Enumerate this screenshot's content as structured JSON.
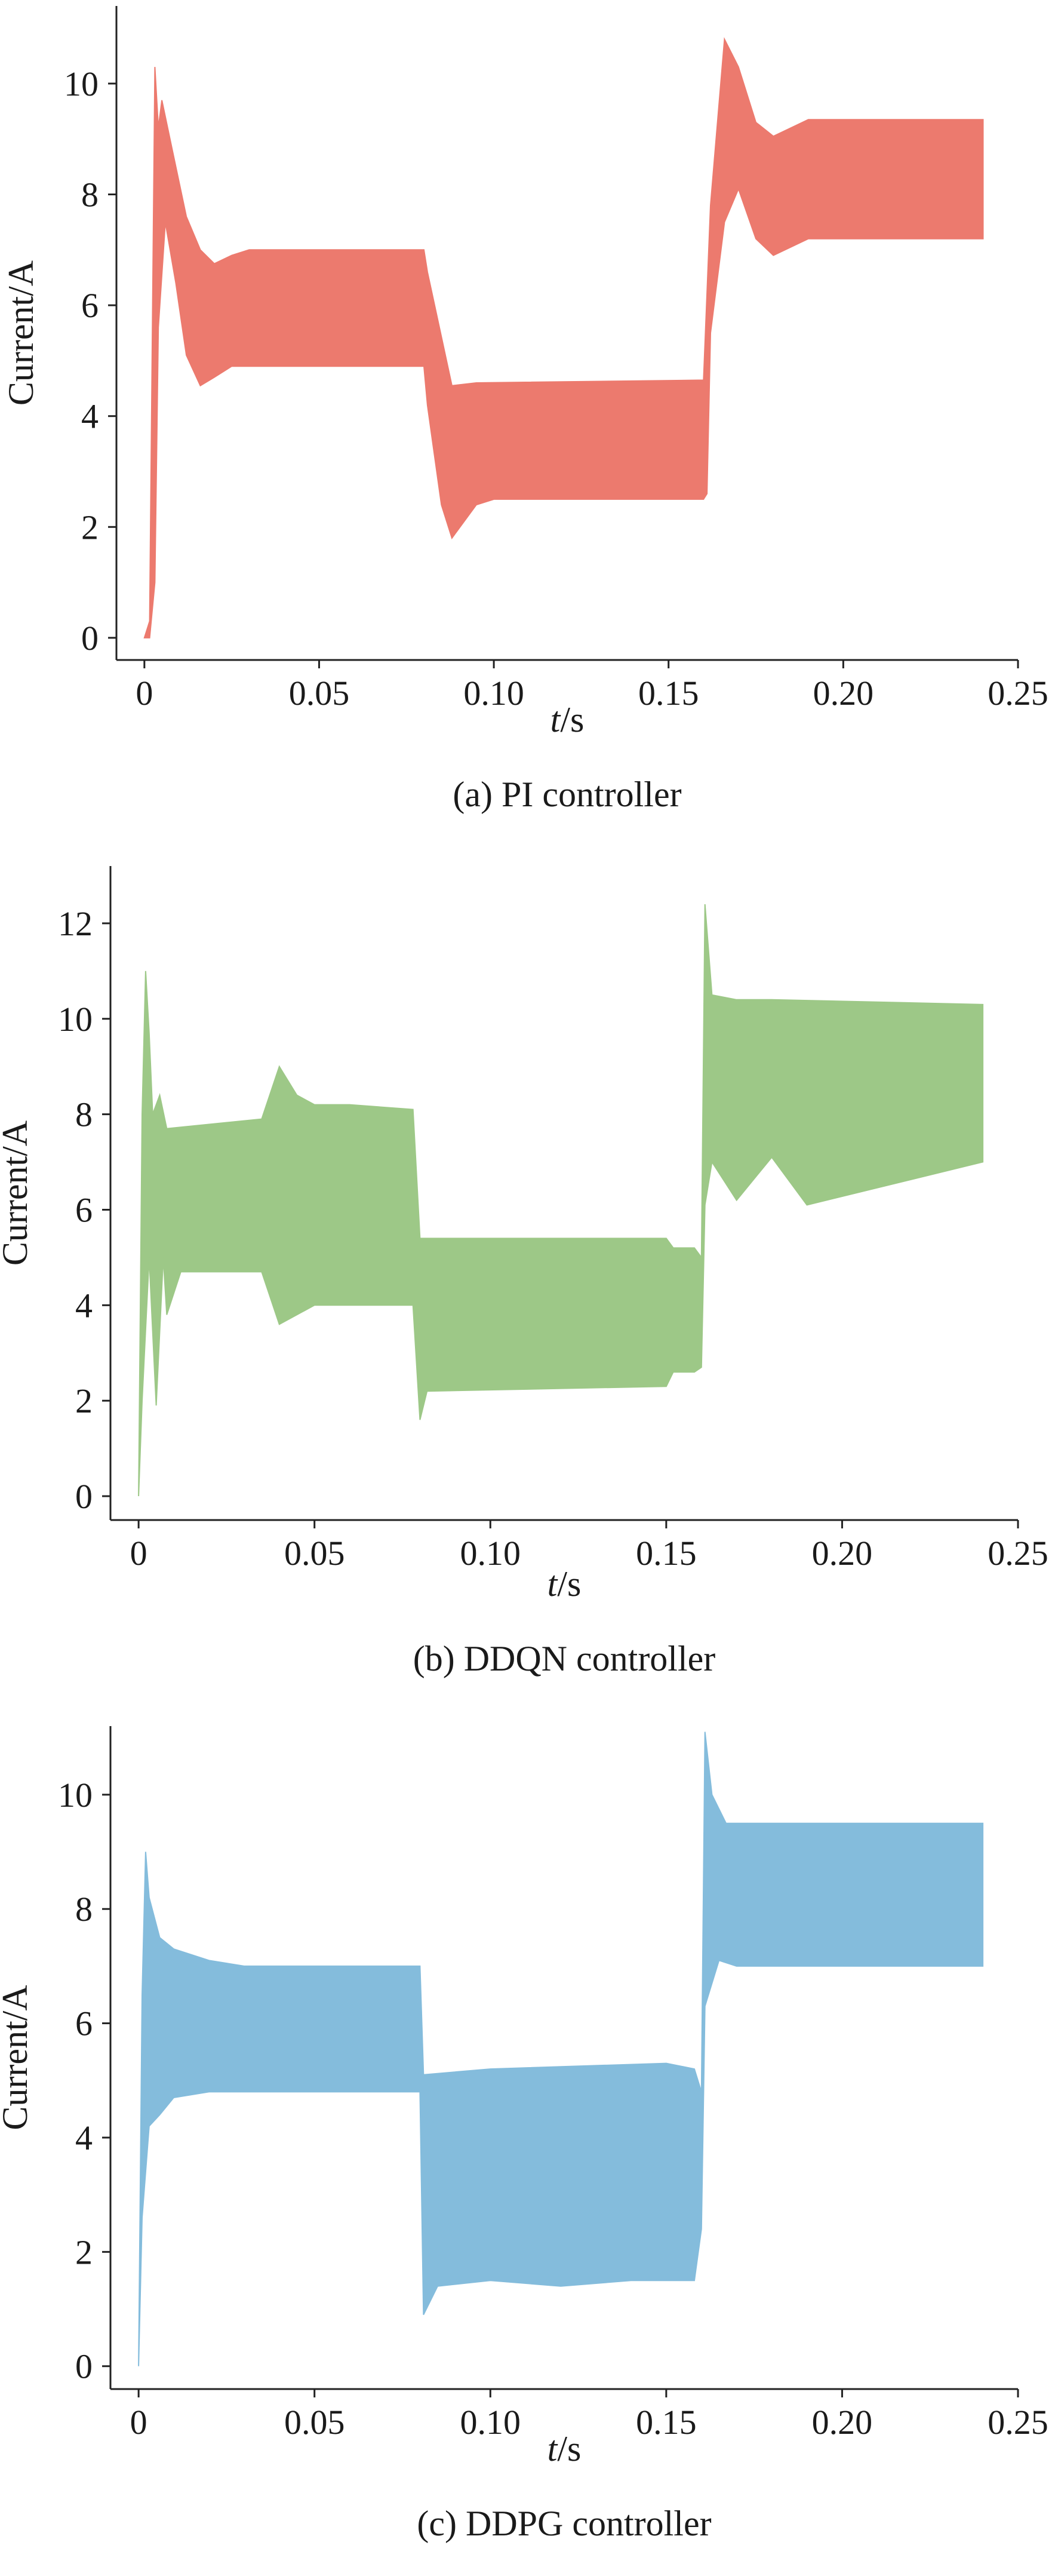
{
  "chart_data": [
    {
      "type": "area",
      "caption": "(a) PI controller",
      "ylabel": "Current/A",
      "xlabel_italic": "t",
      "xlabel_unit": "/s",
      "x_ticks": [
        "0",
        "0.05",
        "0.10",
        "0.15",
        "0.20",
        "0.25"
      ],
      "y_ticks": [
        "0",
        "2",
        "4",
        "6",
        "8",
        "10"
      ],
      "xlim": [
        -0.008,
        0.25
      ],
      "ylim": [
        -0.4,
        11.4
      ],
      "color": "#ec7a6e",
      "series": [
        {
          "upper": [
            [
              0.0,
              0.0
            ],
            [
              0.0015,
              0.3
            ],
            [
              0.003,
              10.3
            ],
            [
              0.004,
              9.2
            ],
            [
              0.005,
              9.7
            ],
            [
              0.008,
              8.8
            ],
            [
              0.012,
              7.6
            ],
            [
              0.016,
              7.0
            ],
            [
              0.02,
              6.75
            ],
            [
              0.025,
              6.9
            ],
            [
              0.03,
              7.0
            ],
            [
              0.08,
              7.0
            ],
            [
              0.081,
              6.6
            ],
            [
              0.088,
              4.55
            ],
            [
              0.095,
              4.6
            ],
            [
              0.16,
              4.65
            ],
            [
              0.162,
              7.8
            ],
            [
              0.166,
              10.8
            ],
            [
              0.17,
              10.3
            ],
            [
              0.175,
              9.3
            ],
            [
              0.18,
              9.05
            ],
            [
              0.19,
              9.35
            ],
            [
              0.24,
              9.35
            ]
          ],
          "lower": [
            [
              0.0,
              0.0
            ],
            [
              0.0015,
              0.0
            ],
            [
              0.003,
              1.0
            ],
            [
              0.004,
              5.6
            ],
            [
              0.006,
              7.5
            ],
            [
              0.009,
              6.4
            ],
            [
              0.012,
              5.1
            ],
            [
              0.016,
              4.55
            ],
            [
              0.02,
              4.7
            ],
            [
              0.025,
              4.9
            ],
            [
              0.08,
              4.9
            ],
            [
              0.081,
              4.2
            ],
            [
              0.085,
              2.4
            ],
            [
              0.088,
              1.8
            ],
            [
              0.095,
              2.4
            ],
            [
              0.1,
              2.5
            ],
            [
              0.16,
              2.5
            ],
            [
              0.161,
              2.6
            ],
            [
              0.162,
              5.5
            ],
            [
              0.166,
              7.5
            ],
            [
              0.17,
              8.1
            ],
            [
              0.175,
              7.2
            ],
            [
              0.18,
              6.9
            ],
            [
              0.19,
              7.2
            ],
            [
              0.24,
              7.2
            ]
          ]
        }
      ]
    },
    {
      "type": "area",
      "caption": "(b) DDQN controller",
      "ylabel": "Current/A",
      "xlabel_italic": "t",
      "xlabel_unit": "/s",
      "x_ticks": [
        "0",
        "0.05",
        "0.10",
        "0.15",
        "0.20",
        "0.25"
      ],
      "y_ticks": [
        "0",
        "2",
        "4",
        "6",
        "8",
        "10",
        "12"
      ],
      "xlim": [
        -0.008,
        0.25
      ],
      "ylim": [
        -0.5,
        13.2
      ],
      "color": "#9dc887",
      "series": [
        {
          "upper": [
            [
              0.0,
              0.0
            ],
            [
              0.001,
              8.0
            ],
            [
              0.002,
              11.0
            ],
            [
              0.003,
              9.7
            ],
            [
              0.004,
              8.0
            ],
            [
              0.006,
              8.4
            ],
            [
              0.008,
              7.7
            ],
            [
              0.035,
              7.9
            ],
            [
              0.04,
              9.0
            ],
            [
              0.045,
              8.4
            ],
            [
              0.05,
              8.2
            ],
            [
              0.06,
              8.2
            ],
            [
              0.078,
              8.1
            ],
            [
              0.08,
              5.4
            ],
            [
              0.15,
              5.4
            ],
            [
              0.152,
              5.2
            ],
            [
              0.158,
              5.2
            ],
            [
              0.16,
              5.0
            ],
            [
              0.161,
              12.4
            ],
            [
              0.163,
              10.5
            ],
            [
              0.17,
              10.4
            ],
            [
              0.18,
              10.4
            ],
            [
              0.24,
              10.3
            ]
          ],
          "lower": [
            [
              0.0,
              0.0
            ],
            [
              0.001,
              2.0
            ],
            [
              0.003,
              5.0
            ],
            [
              0.005,
              1.9
            ],
            [
              0.007,
              5.0
            ],
            [
              0.008,
              3.8
            ],
            [
              0.012,
              4.7
            ],
            [
              0.035,
              4.7
            ],
            [
              0.04,
              3.6
            ],
            [
              0.05,
              4.0
            ],
            [
              0.06,
              4.0
            ],
            [
              0.078,
              4.0
            ],
            [
              0.08,
              1.6
            ],
            [
              0.082,
              2.2
            ],
            [
              0.15,
              2.3
            ],
            [
              0.152,
              2.6
            ],
            [
              0.158,
              2.6
            ],
            [
              0.16,
              2.7
            ],
            [
              0.161,
              6.1
            ],
            [
              0.163,
              7.0
            ],
            [
              0.17,
              6.2
            ],
            [
              0.18,
              7.1
            ],
            [
              0.19,
              6.1
            ],
            [
              0.24,
              7.0
            ]
          ]
        }
      ]
    },
    {
      "type": "area",
      "caption": "(c) DDPG controller",
      "ylabel": "Current/A",
      "xlabel_italic": "t",
      "xlabel_unit": "/s",
      "x_ticks": [
        "0",
        "0.05",
        "0.10",
        "0.15",
        "0.20",
        "0.25"
      ],
      "y_ticks": [
        "0",
        "2",
        "4",
        "6",
        "8",
        "10"
      ],
      "xlim": [
        -0.008,
        0.25
      ],
      "ylim": [
        -0.4,
        11.2
      ],
      "color": "#84bcdc",
      "series": [
        {
          "upper": [
            [
              0.0,
              0.0
            ],
            [
              0.001,
              6.5
            ],
            [
              0.002,
              9.0
            ],
            [
              0.003,
              8.2
            ],
            [
              0.006,
              7.5
            ],
            [
              0.01,
              7.3
            ],
            [
              0.02,
              7.1
            ],
            [
              0.03,
              7.0
            ],
            [
              0.08,
              7.0
            ],
            [
              0.081,
              5.1
            ],
            [
              0.1,
              5.2
            ],
            [
              0.15,
              5.3
            ],
            [
              0.158,
              5.2
            ],
            [
              0.16,
              4.8
            ],
            [
              0.161,
              11.1
            ],
            [
              0.163,
              10.0
            ],
            [
              0.167,
              9.5
            ],
            [
              0.17,
              9.5
            ],
            [
              0.24,
              9.5
            ]
          ],
          "lower": [
            [
              0.0,
              0.0
            ],
            [
              0.001,
              2.6
            ],
            [
              0.003,
              4.2
            ],
            [
              0.006,
              4.4
            ],
            [
              0.01,
              4.7
            ],
            [
              0.02,
              4.8
            ],
            [
              0.08,
              4.8
            ],
            [
              0.081,
              0.9
            ],
            [
              0.085,
              1.4
            ],
            [
              0.1,
              1.5
            ],
            [
              0.12,
              1.4
            ],
            [
              0.14,
              1.5
            ],
            [
              0.158,
              1.5
            ],
            [
              0.16,
              2.4
            ],
            [
              0.161,
              6.3
            ],
            [
              0.165,
              7.1
            ],
            [
              0.17,
              7.0
            ],
            [
              0.24,
              7.0
            ]
          ]
        }
      ]
    }
  ]
}
